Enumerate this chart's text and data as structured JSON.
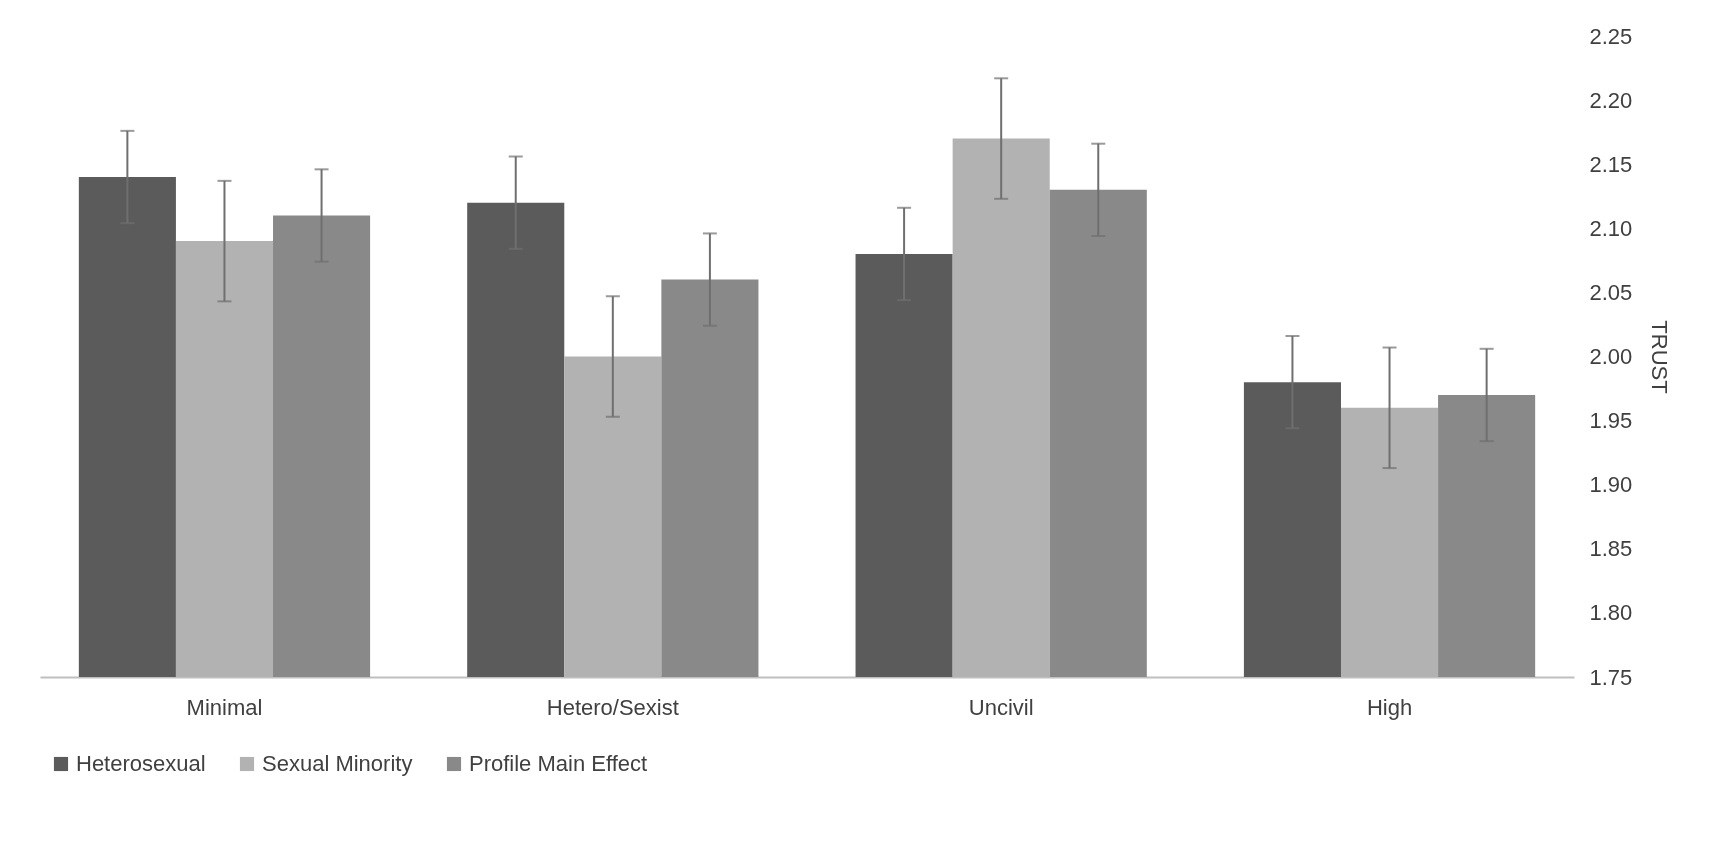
{
  "chart_data": {
    "type": "bar",
    "ylabel": "TRUST",
    "categories": [
      "Minimal",
      "Hetero/Sexist",
      "Uncivil",
      "High"
    ],
    "series": [
      {
        "name": "Heterosexual",
        "color": "#5b5b5b",
        "values": [
          2.14,
          2.12,
          2.08,
          1.98
        ],
        "errors": [
          0.036,
          0.036,
          0.036,
          0.036
        ]
      },
      {
        "name": "Sexual Minority",
        "color": "#b2b2b2",
        "values": [
          2.09,
          2.0,
          2.17,
          1.96
        ],
        "errors": [
          0.047,
          0.047,
          0.047,
          0.047
        ]
      },
      {
        "name": "Profile Main Effect",
        "color": "#898989",
        "values": [
          2.11,
          2.06,
          2.13,
          1.97
        ],
        "errors": [
          0.036,
          0.036,
          0.036,
          0.036
        ]
      }
    ],
    "ylim": [
      1.75,
      2.25
    ],
    "yticks": [
      {
        "value": 1.75,
        "label": "1.75"
      },
      {
        "value": 1.8,
        "label": "1.80"
      },
      {
        "value": 1.85,
        "label": "1.85"
      },
      {
        "value": 1.9,
        "label": "1.90"
      },
      {
        "value": 1.95,
        "label": "1.95"
      },
      {
        "value": 2.0,
        "label": "2.00"
      },
      {
        "value": 2.05,
        "label": "2.05"
      },
      {
        "value": 2.1,
        "label": "2.10"
      },
      {
        "value": 2.15,
        "label": "2.15"
      },
      {
        "value": 2.2,
        "label": "2.20"
      },
      {
        "value": 2.25,
        "label": "2.25"
      }
    ],
    "grid": false,
    "legend": "bottom"
  }
}
